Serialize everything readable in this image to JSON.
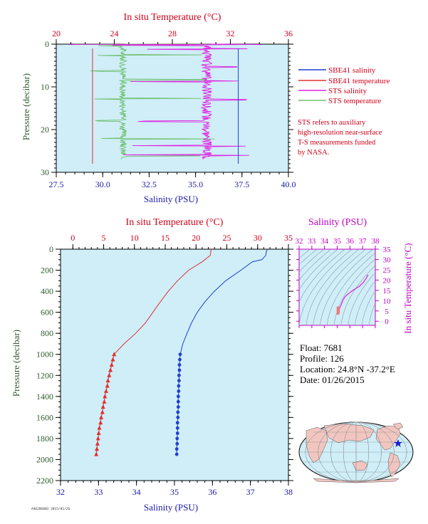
{
  "colors": {
    "plot_bg": "#cfeef8",
    "salinity_axis": "#1a1aa8",
    "temperature_axis": "#d0001a",
    "ts_axis": "#c000c0",
    "pressure_axis": "#2f5a2f",
    "sbe41_salinity": "#1f3fd0",
    "sbe41_temperature": "#e03030",
    "sts_salinity": "#e020e0",
    "sts_temperature": "#70c070",
    "land": "#f2c6c0",
    "ocean": "#cfeef8"
  },
  "legend": {
    "items": [
      {
        "label": "SBE41 salinity",
        "color": "#1f3fd0"
      },
      {
        "label": "SBE41 temperature",
        "color": "#e03030"
      },
      {
        "label": "STS salinity",
        "color": "#e020e0"
      },
      {
        "label": "STS temperature",
        "color": "#70c070"
      }
    ],
    "note_lines": [
      "STS refers to auxiliary",
      "high-resolution near-surface",
      "T-S measurements funded",
      "by NASA."
    ]
  },
  "float_info": {
    "float": "Float:  7681",
    "profile": "Profile:  126",
    "location": "Location:  24.8°N  -37.2°E",
    "date": "Date:  01/26/2015"
  },
  "footer_tag": "A4620G003 2015/01/26",
  "chart_data": [
    {
      "id": "near-surface",
      "type": "line",
      "xlabel_bottom": "Salinity (PSU)",
      "xlabel_top": "In situ Temperature (°C)",
      "ylabel": "Pressure (decibar)",
      "salinity_range": [
        27.5,
        40.0
      ],
      "salinity_ticks": [
        "27.5",
        "30.0",
        "32.5",
        "35.0",
        "37.5",
        "40.0"
      ],
      "temperature_range": [
        20,
        36
      ],
      "temperature_ticks": [
        "20",
        "24",
        "28",
        "32",
        "36"
      ],
      "pressure_range": [
        0,
        30
      ],
      "pressure_ticks": [
        "0",
        "10",
        "20",
        "30"
      ],
      "series": [
        {
          "name": "SBE41 salinity",
          "pressure": [
            0,
            28
          ],
          "salinity": [
            37.3,
            37.3
          ]
        },
        {
          "name": "SBE41 temperature",
          "pressure": [
            0,
            28
          ],
          "temperature": [
            22.5,
            22.5
          ]
        },
        {
          "name": "STS salinity",
          "salinity_mean": 35.6,
          "pressure_range": [
            0,
            27
          ]
        },
        {
          "name": "STS temperature",
          "temperature_mean": 24.6,
          "pressure_range": [
            0,
            27
          ]
        }
      ]
    },
    {
      "id": "full-profile",
      "type": "line",
      "xlabel_bottom": "Salinity (PSU)",
      "xlabel_top": "In situ Temperature (°C)",
      "ylabel": "Pressure (decibar)",
      "salinity_range": [
        32,
        38
      ],
      "salinity_ticks": [
        "32",
        "33",
        "34",
        "35",
        "36",
        "37",
        "38"
      ],
      "temperature_range": [
        -2,
        35
      ],
      "temperature_ticks": [
        "0",
        "5",
        "10",
        "15",
        "20",
        "25",
        "30",
        "35"
      ],
      "pressure_range": [
        0,
        2200
      ],
      "pressure_ticks": [
        "0",
        "200",
        "400",
        "600",
        "800",
        "1000",
        "1200",
        "1400",
        "1600",
        "1800",
        "2000",
        "2200"
      ],
      "series": [
        {
          "name": "SBE41 temperature",
          "pressure": [
            0,
            20,
            60,
            120,
            200,
            300,
            400,
            500,
            600,
            700,
            800,
            900,
            1000,
            1050,
            1100,
            1150,
            1200,
            1250,
            1300,
            1350,
            1400,
            1450,
            1500,
            1550,
            1600,
            1650,
            1700,
            1750,
            1800,
            1850,
            1900,
            1950
          ],
          "values": [
            22.5,
            22.4,
            22.3,
            21.0,
            18.8,
            17.0,
            15.5,
            14.2,
            13.0,
            11.8,
            10.2,
            8.3,
            6.7,
            6.5,
            6.3,
            6.1,
            5.9,
            5.7,
            5.6,
            5.4,
            5.2,
            5.1,
            4.9,
            4.8,
            4.6,
            4.5,
            4.3,
            4.2,
            4.1,
            4.0,
            3.9,
            3.8
          ],
          "markers_from": 1000
        },
        {
          "name": "SBE41 salinity",
          "pressure": [
            0,
            20,
            60,
            100,
            120,
            200,
            300,
            400,
            500,
            600,
            700,
            800,
            900,
            1000,
            1050,
            1100,
            1150,
            1200,
            1250,
            1300,
            1350,
            1400,
            1450,
            1500,
            1550,
            1600,
            1650,
            1700,
            1750,
            1800,
            1850,
            1900,
            1950
          ],
          "values": [
            37.45,
            37.42,
            37.4,
            37.3,
            37.05,
            36.75,
            36.35,
            36.05,
            35.8,
            35.6,
            35.45,
            35.33,
            35.22,
            35.15,
            35.14,
            35.13,
            35.13,
            35.12,
            35.12,
            35.11,
            35.11,
            35.1,
            35.1,
            35.1,
            35.09,
            35.09,
            35.08,
            35.08,
            35.08,
            35.07,
            35.07,
            35.06,
            35.06
          ],
          "markers_from": 1000
        }
      ]
    },
    {
      "id": "ts-diagram",
      "type": "scatter",
      "xlabel_top": "Salinity (PSU)",
      "ylabel_right": "In situ Temperature (°C)",
      "salinity_range": [
        32,
        38
      ],
      "salinity_ticks": [
        "32",
        "33",
        "34",
        "35",
        "36",
        "37",
        "38"
      ],
      "temperature_range": [
        -2,
        35
      ],
      "temperature_ticks": [
        "0",
        "5",
        "10",
        "15",
        "20",
        "25",
        "30",
        "35"
      ],
      "series": [
        {
          "name": "TS curve",
          "salinity": [
            35.06,
            35.1,
            35.15,
            35.22,
            35.33,
            35.45,
            35.6,
            35.8,
            36.05,
            36.35,
            36.75,
            37.05,
            37.3,
            37.4,
            37.45
          ],
          "temperature": [
            3.8,
            4.6,
            5.4,
            6.7,
            8.3,
            10.2,
            11.8,
            13.0,
            14.2,
            15.5,
            17.0,
            18.8,
            21.0,
            22.3,
            22.5
          ]
        }
      ]
    }
  ],
  "map": {
    "marker_lon": -37.2,
    "marker_lat": 24.8
  }
}
